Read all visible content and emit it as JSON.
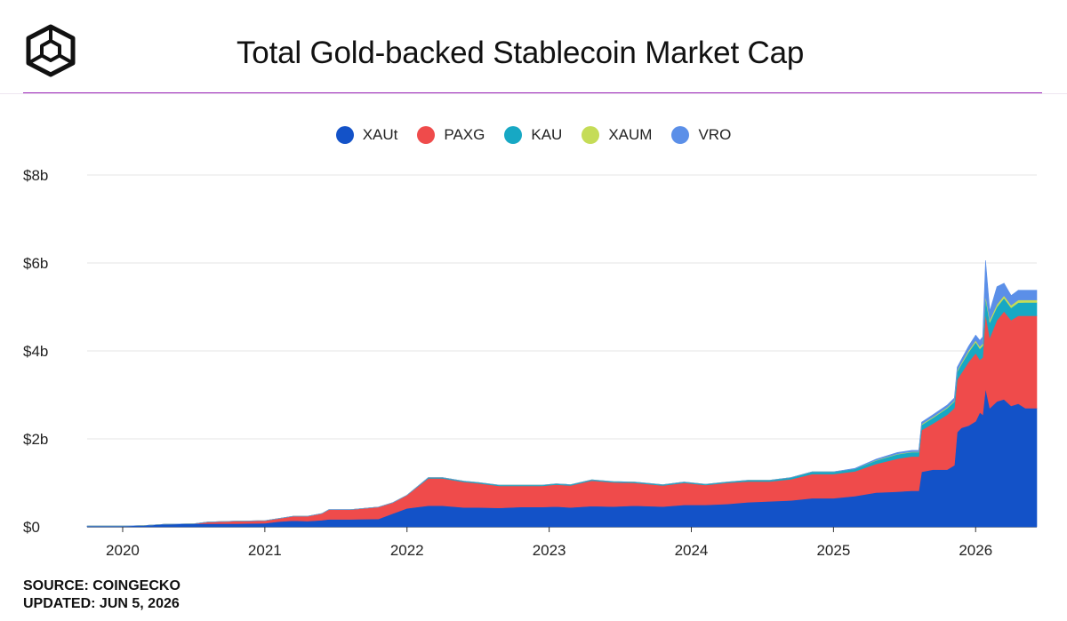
{
  "header": {
    "title": "Total Gold-backed Stablecoin Market Cap",
    "logo_icon": "cube-logo-icon"
  },
  "footer": {
    "source": "SOURCE: COINGECKO",
    "updated": "UPDATED: JUN 5, 2026"
  },
  "chart_data": {
    "type": "area",
    "stacked": true,
    "title": "Total Gold-backed Stablecoin Market Cap",
    "xlabel": "",
    "ylabel": "",
    "x_ticks": [
      "2020",
      "2021",
      "2022",
      "2023",
      "2024",
      "2025",
      "2026"
    ],
    "y_ticks": [
      "$0",
      "$2b",
      "$4b",
      "$6b",
      "$8b"
    ],
    "ylim": [
      0,
      8
    ],
    "y_unit": "billion USD",
    "xlim": [
      2019.75,
      2026.43
    ],
    "legend_position": "top-center",
    "grid": true,
    "x": [
      2019.75,
      2020.0,
      2020.15,
      2020.3,
      2020.5,
      2020.6,
      2020.8,
      2021.0,
      2021.1,
      2021.2,
      2021.3,
      2021.4,
      2021.45,
      2021.6,
      2021.8,
      2021.9,
      2022.0,
      2022.15,
      2022.25,
      2022.4,
      2022.5,
      2022.65,
      2022.8,
      2022.95,
      2023.05,
      2023.15,
      2023.3,
      2023.45,
      2023.6,
      2023.8,
      2023.95,
      2024.1,
      2024.25,
      2024.4,
      2024.55,
      2024.7,
      2024.85,
      2025.0,
      2025.15,
      2025.3,
      2025.45,
      2025.55,
      2025.6,
      2025.62,
      2025.7,
      2025.8,
      2025.85,
      2025.87,
      2025.9,
      2025.95,
      2026.0,
      2026.03,
      2026.05,
      2026.07,
      2026.1,
      2026.15,
      2026.2,
      2026.25,
      2026.3,
      2026.35,
      2026.43
    ],
    "series": [
      {
        "name": "XAUt",
        "color": "#1352c8",
        "values": [
          0.02,
          0.02,
          0.03,
          0.06,
          0.07,
          0.07,
          0.07,
          0.08,
          0.12,
          0.14,
          0.13,
          0.15,
          0.17,
          0.17,
          0.18,
          0.3,
          0.42,
          0.48,
          0.48,
          0.44,
          0.44,
          0.43,
          0.45,
          0.45,
          0.46,
          0.44,
          0.47,
          0.46,
          0.48,
          0.46,
          0.5,
          0.5,
          0.52,
          0.56,
          0.58,
          0.6,
          0.65,
          0.65,
          0.7,
          0.78,
          0.8,
          0.82,
          0.82,
          1.25,
          1.3,
          1.3,
          1.4,
          2.15,
          2.25,
          2.3,
          2.4,
          2.6,
          2.55,
          3.15,
          2.7,
          2.85,
          2.9,
          2.75,
          2.8,
          2.7,
          2.7
        ]
      },
      {
        "name": "PAXG",
        "color": "#ef4b4b",
        "values": [
          0.0,
          0.0,
          0.0,
          0.0,
          0.0,
          0.04,
          0.06,
          0.06,
          0.07,
          0.1,
          0.11,
          0.15,
          0.22,
          0.22,
          0.27,
          0.25,
          0.3,
          0.62,
          0.62,
          0.58,
          0.55,
          0.5,
          0.48,
          0.48,
          0.5,
          0.5,
          0.58,
          0.55,
          0.52,
          0.48,
          0.5,
          0.45,
          0.48,
          0.47,
          0.45,
          0.48,
          0.55,
          0.55,
          0.56,
          0.65,
          0.75,
          0.78,
          0.78,
          0.95,
          1.05,
          1.25,
          1.3,
          1.2,
          1.25,
          1.45,
          1.55,
          1.2,
          1.3,
          1.7,
          1.6,
          1.85,
          2.0,
          1.95,
          2.0,
          2.1,
          2.1
        ]
      },
      {
        "name": "KAU",
        "color": "#17a8c4",
        "values": [
          0.0,
          0.0,
          0.0,
          0.0,
          0.0,
          0.0,
          0.0,
          0.0,
          0.0,
          0.0,
          0.0,
          0.0,
          0.0,
          0.0,
          0.0,
          0.0,
          0.0,
          0.02,
          0.02,
          0.02,
          0.02,
          0.02,
          0.02,
          0.02,
          0.02,
          0.02,
          0.02,
          0.02,
          0.02,
          0.02,
          0.02,
          0.02,
          0.02,
          0.03,
          0.03,
          0.04,
          0.05,
          0.05,
          0.06,
          0.08,
          0.1,
          0.1,
          0.1,
          0.12,
          0.13,
          0.15,
          0.15,
          0.18,
          0.2,
          0.22,
          0.25,
          0.25,
          0.27,
          0.35,
          0.35,
          0.3,
          0.3,
          0.28,
          0.3,
          0.3,
          0.3
        ]
      },
      {
        "name": "XAUM",
        "color": "#c5dc57",
        "values": [
          0.0,
          0.0,
          0.0,
          0.0,
          0.0,
          0.0,
          0.0,
          0.0,
          0.0,
          0.0,
          0.0,
          0.0,
          0.0,
          0.0,
          0.0,
          0.0,
          0.0,
          0.0,
          0.0,
          0.0,
          0.0,
          0.0,
          0.0,
          0.0,
          0.0,
          0.0,
          0.0,
          0.0,
          0.0,
          0.0,
          0.0,
          0.0,
          0.0,
          0.0,
          0.0,
          0.0,
          0.0,
          0.0,
          0.0,
          0.01,
          0.01,
          0.01,
          0.01,
          0.02,
          0.02,
          0.02,
          0.02,
          0.03,
          0.03,
          0.04,
          0.04,
          0.05,
          0.05,
          0.06,
          0.06,
          0.06,
          0.06,
          0.06,
          0.06,
          0.06,
          0.06
        ]
      },
      {
        "name": "VRO",
        "color": "#5b8fe8",
        "values": [
          0.0,
          0.0,
          0.0,
          0.0,
          0.0,
          0.0,
          0.0,
          0.0,
          0.0,
          0.0,
          0.0,
          0.0,
          0.0,
          0.0,
          0.0,
          0.0,
          0.0,
          0.0,
          0.0,
          0.0,
          0.0,
          0.0,
          0.0,
          0.0,
          0.0,
          0.0,
          0.0,
          0.0,
          0.0,
          0.0,
          0.0,
          0.0,
          0.0,
          0.0,
          0.0,
          0.0,
          0.0,
          0.0,
          0.01,
          0.02,
          0.03,
          0.03,
          0.03,
          0.04,
          0.05,
          0.05,
          0.06,
          0.07,
          0.08,
          0.1,
          0.12,
          0.14,
          0.15,
          0.8,
          0.2,
          0.4,
          0.28,
          0.22,
          0.22,
          0.22,
          0.22
        ]
      }
    ]
  }
}
